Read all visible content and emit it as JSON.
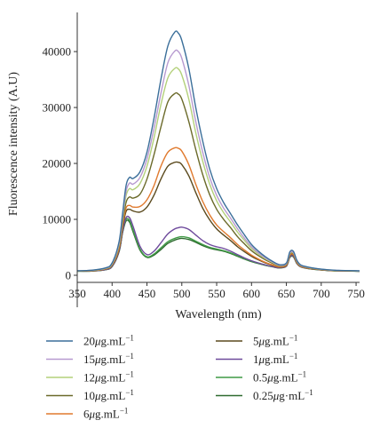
{
  "chart_data": {
    "type": "line",
    "xlabel": "Wavelength (nm)",
    "ylabel": "Fluorescence intensity (A.U)",
    "xlim": [
      350,
      755
    ],
    "ylim": [
      0,
      47000
    ],
    "xticks": [
      350,
      400,
      450,
      500,
      550,
      600,
      650,
      700,
      750
    ],
    "yticks": [
      0,
      10000,
      20000,
      30000,
      40000
    ],
    "grid": false,
    "legend_position": "bottom",
    "x": [
      350,
      370,
      390,
      400,
      410,
      415,
      420,
      425,
      430,
      440,
      450,
      460,
      470,
      480,
      490,
      495,
      500,
      510,
      520,
      530,
      540,
      550,
      560,
      570,
      580,
      590,
      600,
      610,
      620,
      630,
      640,
      650,
      655,
      660,
      665,
      670,
      680,
      700,
      720,
      755
    ],
    "series": [
      {
        "name": "20",
        "color": "#3b6f9a",
        "values": [
          800,
          900,
          1300,
          2200,
          6000,
          11000,
          16000,
          17500,
          17300,
          18500,
          22000,
          28000,
          35000,
          41000,
          43500,
          43300,
          42000,
          37000,
          30000,
          24000,
          19000,
          15500,
          13000,
          11000,
          9000,
          7200,
          5500,
          4300,
          3300,
          2500,
          1900,
          2200,
          4200,
          4300,
          2700,
          1900,
          1500,
          1100,
          900,
          800
        ]
      },
      {
        "name": "15",
        "color": "#b79ad0",
        "values": [
          800,
          880,
          1250,
          2100,
          5700,
          10500,
          15000,
          16500,
          16300,
          17500,
          20800,
          26200,
          32500,
          38000,
          40100,
          40000,
          38800,
          34000,
          27500,
          22000,
          17500,
          14300,
          12000,
          10200,
          8300,
          6600,
          5100,
          4000,
          3100,
          2400,
          1800,
          2100,
          4000,
          4100,
          2600,
          1850,
          1450,
          1080,
          880,
          780
        ]
      },
      {
        "name": "12",
        "color": "#b3d07a",
        "values": [
          790,
          860,
          1200,
          2000,
          5400,
          10000,
          14200,
          15500,
          15300,
          16400,
          19500,
          24500,
          30500,
          35300,
          37000,
          36900,
          35800,
          31500,
          25500,
          20400,
          16300,
          13300,
          11200,
          9500,
          7700,
          6200,
          4800,
          3800,
          2950,
          2300,
          1750,
          2050,
          3900,
          4000,
          2550,
          1800,
          1420,
          1060,
          860,
          770
        ]
      },
      {
        "name": "10",
        "color": "#6b6a2a",
        "values": [
          780,
          840,
          1150,
          1900,
          5200,
          9500,
          13000,
          14000,
          13800,
          14500,
          17200,
          21500,
          26500,
          31000,
          32500,
          32400,
          31500,
          27500,
          22500,
          18000,
          14400,
          11800,
          10000,
          8500,
          6900,
          5600,
          4400,
          3500,
          2750,
          2150,
          1650,
          1950,
          3800,
          3900,
          2450,
          1750,
          1380,
          1040,
          850,
          760
        ]
      },
      {
        "name": "6",
        "color": "#e07a2e",
        "values": [
          760,
          800,
          1100,
          1800,
          4800,
          8800,
          12000,
          12500,
          12200,
          12300,
          13500,
          16000,
          19500,
          22000,
          22800,
          22700,
          22200,
          19800,
          16300,
          13200,
          10800,
          9000,
          7800,
          6700,
          5500,
          4500,
          3600,
          2900,
          2300,
          1850,
          1500,
          1800,
          3600,
          3700,
          2300,
          1650,
          1300,
          1000,
          820,
          740
        ]
      },
      {
        "name": "5",
        "color": "#5b4a1e",
        "values": [
          755,
          790,
          1080,
          1750,
          4600,
          8500,
          11400,
          11800,
          11500,
          11300,
          12200,
          14300,
          17200,
          19500,
          20200,
          20200,
          19800,
          17800,
          14800,
          12000,
          9900,
          8300,
          7200,
          6200,
          5100,
          4200,
          3400,
          2750,
          2200,
          1780,
          1450,
          1750,
          3500,
          3600,
          2250,
          1620,
          1280,
          980,
          810,
          735
        ]
      },
      {
        "name": "1",
        "color": "#6e4a9c",
        "values": [
          740,
          760,
          1000,
          1600,
          4300,
          7800,
          10300,
          10300,
          8800,
          5200,
          3700,
          4300,
          5800,
          7400,
          8300,
          8500,
          8600,
          8200,
          7200,
          6200,
          5500,
          5100,
          4800,
          4300,
          3700,
          3100,
          2600,
          2200,
          1850,
          1550,
          1350,
          1650,
          3300,
          3400,
          2150,
          1560,
          1240,
          960,
          800,
          730
        ]
      },
      {
        "name": "0.5",
        "color": "#3f9a45",
        "values": [
          735,
          755,
          990,
          1580,
          4250,
          7700,
          10000,
          9800,
          8100,
          4700,
          3300,
          3800,
          4900,
          6000,
          6600,
          6800,
          6900,
          6700,
          6100,
          5500,
          5000,
          4700,
          4400,
          4000,
          3500,
          2950,
          2500,
          2150,
          1800,
          1530,
          1330,
          1630,
          3250,
          3350,
          2120,
          1550,
          1230,
          955,
          795,
          728
        ]
      },
      {
        "name": "0.25",
        "color": "#2f6b30",
        "values": [
          730,
          750,
          980,
          1560,
          4200,
          7600,
          9700,
          9500,
          7800,
          4500,
          3200,
          3600,
          4600,
          5700,
          6300,
          6500,
          6600,
          6400,
          5900,
          5300,
          4850,
          4550,
          4300,
          3900,
          3400,
          2900,
          2450,
          2100,
          1770,
          1510,
          1320,
          1620,
          3200,
          3300,
          2100,
          1540,
          1220,
          950,
          790,
          725
        ]
      }
    ]
  },
  "legend": [
    {
      "num": "20",
      "unit_a": "μg.mL",
      "sup": "−1",
      "color": "#3b6f9a"
    },
    {
      "num": "15",
      "unit_a": "μg.mL",
      "sup": "−1",
      "color": "#b79ad0"
    },
    {
      "num": "12",
      "unit_a": "μg.mL",
      "sup": "−1",
      "color": "#b3d07a"
    },
    {
      "num": "10",
      "unit_a": "μg.mL",
      "sup": "−1",
      "color": "#6b6a2a"
    },
    {
      "num": "6",
      "unit_a": "μg.mL",
      "sup": "−1",
      "color": "#e07a2e"
    },
    {
      "num": "5",
      "unit_a": "μg.mL",
      "sup": "−1",
      "color": "#5b4a1e"
    },
    {
      "num": "1",
      "unit_a": "μg.mL",
      "sup": "−1",
      "color": "#6e4a9c"
    },
    {
      "num": "0.5",
      "unit_a": "μg.mL",
      "sup": "−1",
      "color": "#3f9a45"
    },
    {
      "num": "0.25",
      "unit_a": "μg·mL",
      "sup": "−1",
      "color": "#2f6b30"
    }
  ]
}
